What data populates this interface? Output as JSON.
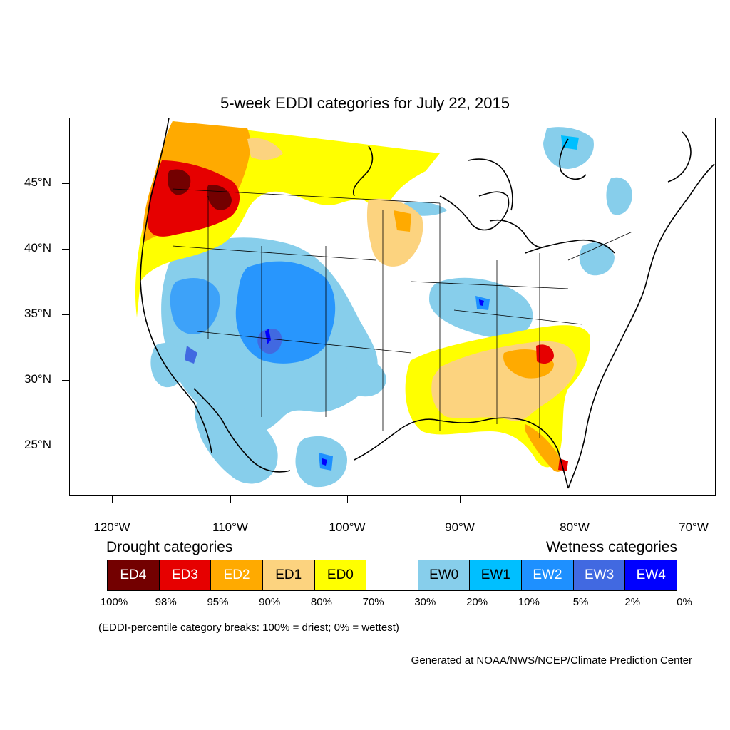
{
  "title": "5-week EDDI categories for July 22, 2015",
  "lat_labels": [
    "45°N",
    "40°N",
    "35°N",
    "30°N",
    "25°N"
  ],
  "lon_labels": [
    "120°W",
    "110°W",
    "100°W",
    "90°W",
    "80°W",
    "70°W"
  ],
  "legend": {
    "drought_heading": "Drought categories",
    "wetness_heading": "Wetness categories",
    "categories": [
      {
        "label": "ED4",
        "color": "#730000",
        "text_color": "#ffffff"
      },
      {
        "label": "ED3",
        "color": "#e60000",
        "text_color": "#ffffff"
      },
      {
        "label": "ED2",
        "color": "#ffaa00",
        "text_color": "#ffffff"
      },
      {
        "label": "ED1",
        "color": "#fcd37f",
        "text_color": "#000000"
      },
      {
        "label": "ED0",
        "color": "#ffff00",
        "text_color": "#000000"
      },
      {
        "label": "",
        "color": "#ffffff",
        "text_color": "#000000"
      },
      {
        "label": "EW0",
        "color": "#87ceeb",
        "text_color": "#000000"
      },
      {
        "label": "EW1",
        "color": "#00bfff",
        "text_color": "#000000"
      },
      {
        "label": "EW2",
        "color": "#1e90ff",
        "text_color": "#ffffff"
      },
      {
        "label": "EW3",
        "color": "#4169e1",
        "text_color": "#ffffff"
      },
      {
        "label": "EW4",
        "color": "#0000ff",
        "text_color": "#ffffff"
      }
    ],
    "breaks": [
      "100%",
      "98%",
      "95%",
      "90%",
      "80%",
      "70%",
      "30%",
      "20%",
      "10%",
      "5%",
      "2%",
      "0%"
    ]
  },
  "note": "(EDDI-percentile category breaks: 100% = driest; 0% = wettest)",
  "credit": "Generated at NOAA/NWS/NCEP/Climate Prediction Center"
}
